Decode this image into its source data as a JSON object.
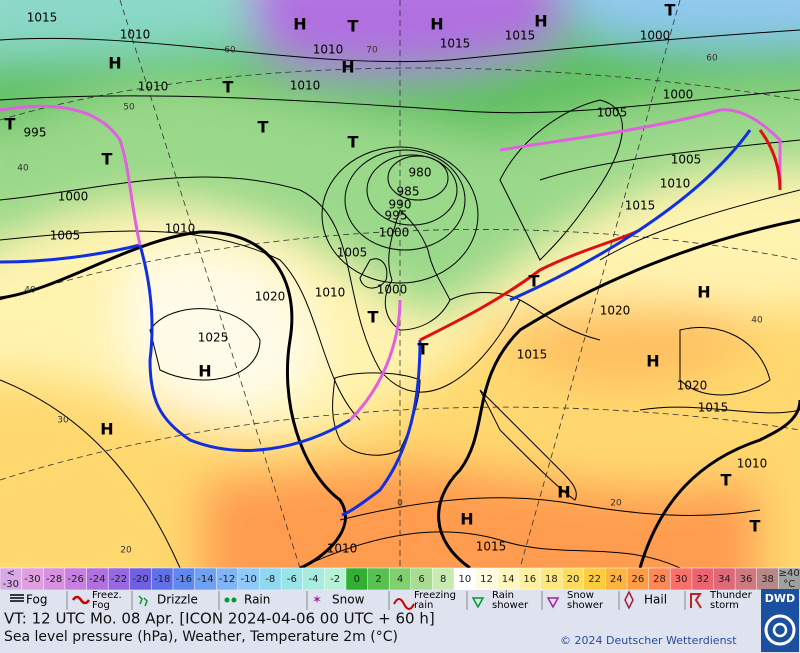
{
  "map": {
    "labels": [
      "1015",
      "1010",
      "1010",
      "1015",
      "1015",
      "1000",
      "1010",
      "1010",
      "995",
      "1000",
      "1005",
      "1010",
      "980",
      "985",
      "990",
      "995",
      "1000",
      "1005",
      "1010",
      "1000",
      "1020",
      "1025",
      "1005",
      "1005",
      "1010",
      "1015",
      "1020",
      "1015",
      "1020",
      "1015",
      "1010",
      "1010",
      "1015",
      "1000",
      "H",
      "H",
      "H",
      "H",
      "H",
      "H",
      "H",
      "H",
      "H",
      "H",
      "H",
      "T",
      "T",
      "T",
      "T",
      "T",
      "T",
      "T",
      "T",
      "T",
      "T",
      "T",
      "T"
    ],
    "grid_labels": [
      "60",
      "50",
      "40",
      "40",
      "30",
      "20",
      "0",
      "20",
      "40",
      "60",
      "70"
    ]
  },
  "color_scale": [
    {
      "top": "<",
      "label": "-30",
      "color": "#d8a8e8"
    },
    {
      "label": "-30",
      "color": "#e0a0e0"
    },
    {
      "label": "-28",
      "color": "#d890e0"
    },
    {
      "label": "-26",
      "color": "#c880e0"
    },
    {
      "label": "-24",
      "color": "#b070e0"
    },
    {
      "label": "-22",
      "color": "#9868e0"
    },
    {
      "label": "-20",
      "color": "#7060e0"
    },
    {
      "label": "-18",
      "color": "#6070e8"
    },
    {
      "label": "-16",
      "color": "#6088f0"
    },
    {
      "label": "-14",
      "color": "#70a0f0"
    },
    {
      "label": "-12",
      "color": "#80b4f4"
    },
    {
      "label": "-10",
      "color": "#90c8f8"
    },
    {
      "label": "-8",
      "color": "#90d8f0"
    },
    {
      "label": "-6",
      "color": "#98e4e8"
    },
    {
      "label": "-4",
      "color": "#a8ece0"
    },
    {
      "label": "-2",
      "color": "#b8f0d8"
    },
    {
      "label": "0",
      "color": "#30b030"
    },
    {
      "label": "2",
      "color": "#58c050"
    },
    {
      "label": "4",
      "color": "#80d070"
    },
    {
      "label": "6",
      "color": "#a8dc90"
    },
    {
      "label": "8",
      "color": "#c8ecb0"
    },
    {
      "label": "10",
      "color": "#ffffff"
    },
    {
      "label": "12",
      "color": "#fffbe0"
    },
    {
      "label": "14",
      "color": "#fff6c0"
    },
    {
      "label": "16",
      "color": "#fff0a0"
    },
    {
      "label": "18",
      "color": "#ffe880"
    },
    {
      "label": "20",
      "color": "#ffdc60"
    },
    {
      "label": "22",
      "color": "#ffcc40"
    },
    {
      "label": "24",
      "color": "#ffb440"
    },
    {
      "label": "26",
      "color": "#ff9c48"
    },
    {
      "label": "28",
      "color": "#ff8858"
    },
    {
      "label": "30",
      "color": "#f87068"
    },
    {
      "label": "32",
      "color": "#ec6470"
    },
    {
      "label": "34",
      "color": "#e06878"
    },
    {
      "label": "36",
      "color": "#d07880"
    },
    {
      "label": "38",
      "color": "#b88888"
    },
    {
      "top": "≥40",
      "label": "°C",
      "color": "#a0a0a0"
    }
  ],
  "legend": [
    "Fog",
    "Freez. Fog",
    "Drizzle",
    "Rain",
    "Snow",
    "Freezing rain",
    "Rain shower",
    "Snow shower",
    "Hail",
    "Thunder storm"
  ],
  "footer": {
    "valid_time": "VT: 12 UTC Mo.  08 Apr. [ICON 2024-04-06  00 UTC + 60 h]",
    "description": "Sea level pressure (hPa), Weather, Temperature 2m (°C)",
    "copyright": "© 2024 Deutscher Wetterdienst",
    "logo": "DWD"
  }
}
